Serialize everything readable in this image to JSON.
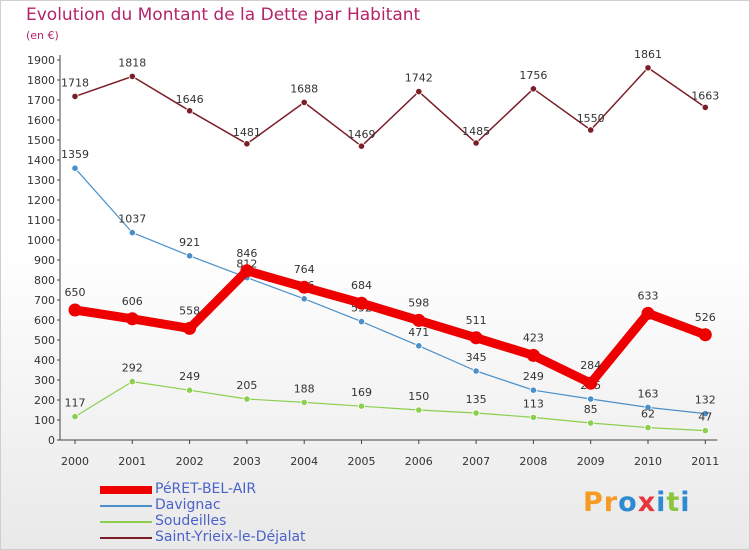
{
  "title": "Evolution du Montant de la Dette par Habitant",
  "subtitle": "(en €)",
  "logo_text": "Proxiti",
  "chart_data": {
    "type": "line",
    "x": [
      "2000",
      "2001",
      "2002",
      "2003",
      "2004",
      "2005",
      "2006",
      "2007",
      "2008",
      "2009",
      "2010",
      "2011"
    ],
    "ylim": [
      0,
      1900
    ],
    "y_ticks": [
      0,
      100,
      200,
      300,
      400,
      500,
      600,
      700,
      800,
      900,
      1000,
      1100,
      1200,
      1300,
      1400,
      1500,
      1600,
      1700,
      1800,
      1900
    ],
    "grid": false,
    "legend_position": "bottom-left",
    "series": [
      {
        "name": "Saint-Yrieix-le-Déjalat",
        "color": "#7b1e28",
        "values": [
          1718,
          1818,
          1646,
          1481,
          1688,
          1469,
          1742,
          1485,
          1756,
          1550,
          1861,
          1663
        ]
      },
      {
        "name": "Davignac",
        "color": "#4a8fc8",
        "values": [
          1359,
          1037,
          921,
          812,
          706,
          592,
          471,
          345,
          249,
          205,
          163,
          132
        ]
      },
      {
        "name": "Soudeilles",
        "color": "#8ccf4e",
        "values": [
          117,
          292,
          249,
          205,
          188,
          169,
          150,
          135,
          113,
          85,
          62,
          47
        ]
      },
      {
        "name": "PéRET-BEL-AIR",
        "color": "#ee0000",
        "values": [
          650,
          606,
          558,
          846,
          764,
          684,
          598,
          511,
          423,
          284,
          633,
          526
        ]
      }
    ],
    "legend_order": [
      "PéRET-BEL-AIR",
      "Davignac",
      "Soudeilles",
      "Saint-Yrieix-le-Déjalat"
    ]
  }
}
